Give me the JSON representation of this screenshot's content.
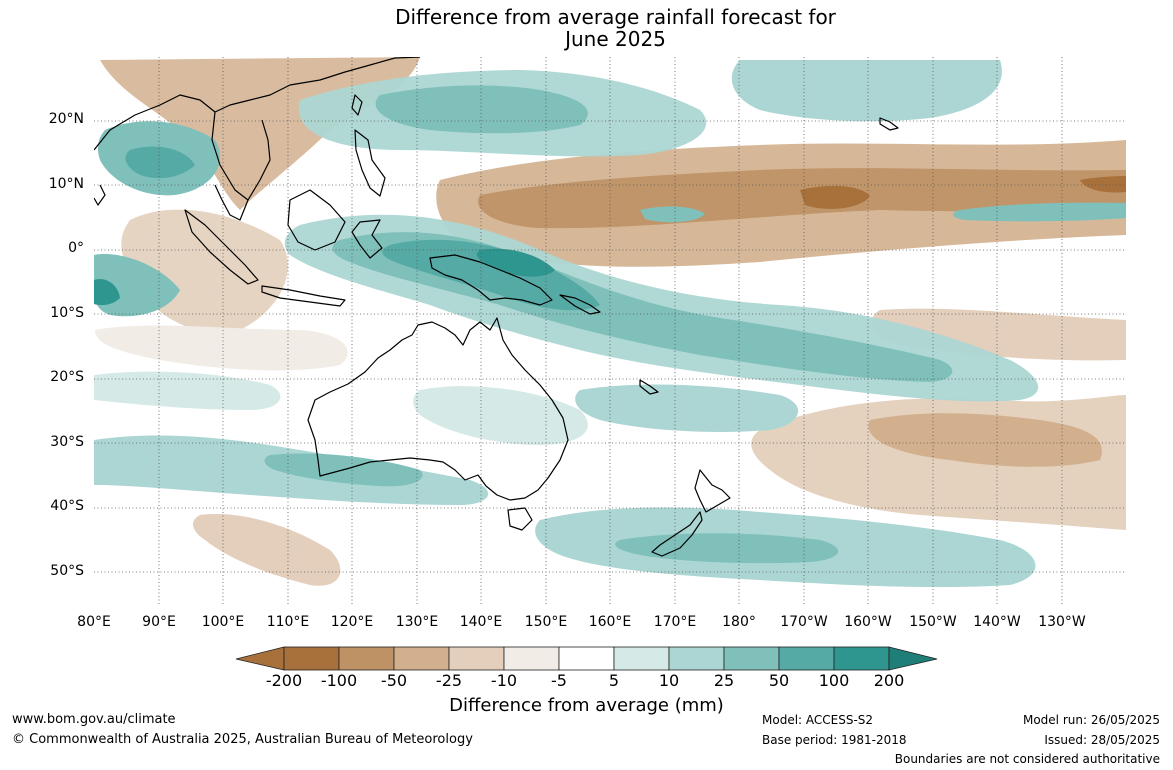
{
  "title_line1": "Difference from average rainfall forecast for",
  "title_line2": "June 2025",
  "lat_labels": [
    "20°N",
    "10°N",
    "0°",
    "10°S",
    "20°S",
    "30°S",
    "40°S",
    "50°S"
  ],
  "lon_labels": [
    "80°E",
    "90°E",
    "100°E",
    "110°E",
    "120°E",
    "130°E",
    "140°E",
    "150°E",
    "160°E",
    "170°E",
    "180°",
    "170°W",
    "160°W",
    "150°W",
    "140°W",
    "130°W"
  ],
  "colorbar": {
    "title": "Difference from average (mm)",
    "ticks": [
      "-200",
      "-100",
      "-50",
      "-25",
      "-10",
      "-5",
      "5",
      "10",
      "25",
      "50",
      "100",
      "200"
    ],
    "colors": [
      "#a8703a",
      "#bf9266",
      "#d2b08e",
      "#e3cfbb",
      "#f1ece6",
      "#ffffff",
      "#d5e9e7",
      "#acd6d3",
      "#7fc0bb",
      "#55aaa5",
      "#2e958f",
      "#1f7f78"
    ]
  },
  "footer": {
    "website": "www.bom.gov.au/climate",
    "copyright": "© Commonwealth of Australia 2025, Australian Bureau of Meteorology",
    "model": "Model: ACCESS-S2",
    "base_period": "Base period: 1981-2018",
    "model_run": "Model run: 26/05/2025",
    "issued": "Issued: 28/05/2025",
    "boundaries_note": "Boundaries are not considered authoritative"
  }
}
